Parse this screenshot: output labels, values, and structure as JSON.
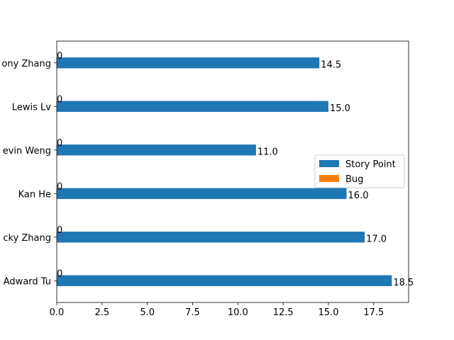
{
  "chart_data": {
    "type": "bar",
    "orientation": "horizontal",
    "categories": [
      "Adward Tu",
      "Vicky Zhang",
      "Kan He",
      "Kevin Weng",
      "Lewis Lv",
      "Tony Zhang"
    ],
    "category_tick_labels": [
      "Adward Tu",
      "cky Zhang",
      "Kan He",
      "evin Weng",
      "Lewis Lv",
      "ony Zhang"
    ],
    "series": [
      {
        "name": "Story Point",
        "color": "#1f77b4",
        "values": [
          18.5,
          17.0,
          16.0,
          11.0,
          15.0,
          14.5
        ],
        "labels": [
          "18.5",
          "17.0",
          "16.0",
          "11.0",
          "15.0",
          "14.5"
        ]
      },
      {
        "name": "Bug",
        "color": "#ff7f0e",
        "values": [
          0,
          0,
          0,
          0,
          0,
          0
        ],
        "labels": [
          "0",
          "0",
          "0",
          "0",
          "0",
          "0"
        ]
      }
    ],
    "xlim": [
      0,
      19.425
    ],
    "xticks": [
      0.0,
      2.5,
      5.0,
      7.5,
      10.0,
      12.5,
      15.0,
      17.5
    ],
    "xtick_labels": [
      "0.0",
      "2.5",
      "5.0",
      "7.5",
      "10.0",
      "12.5",
      "15.0",
      "17.5"
    ],
    "title": "",
    "xlabel": "",
    "ylabel": "",
    "grid": false,
    "legend_position": "center-right"
  }
}
